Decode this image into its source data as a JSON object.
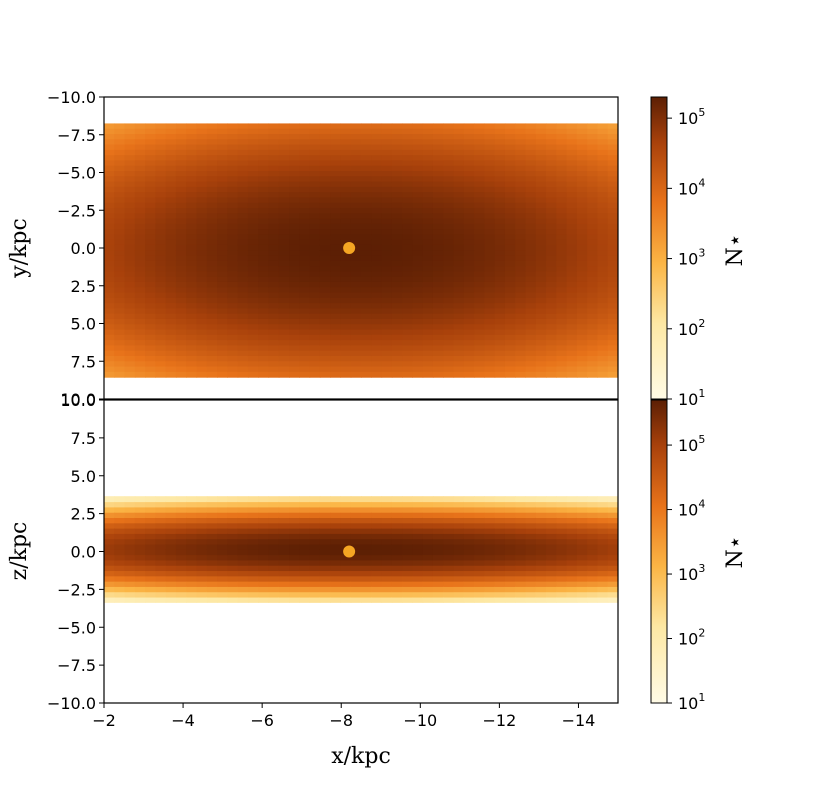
{
  "chart_data": [
    {
      "type": "heatmap",
      "panel": "top",
      "xlabel": "",
      "ylabel": "y/kpc",
      "xlim": [
        -2,
        -15
      ],
      "ylim": [
        -10,
        10
      ],
      "y_inverted": true,
      "yticks": [
        "−10.0",
        "−7.5",
        "−5.0",
        "−2.5",
        "0.0",
        "2.5",
        "5.0",
        "7.5",
        "10.0"
      ],
      "ytick_values": [
        -10,
        -7.5,
        -5,
        -2.5,
        0,
        2.5,
        5,
        7.5,
        10
      ],
      "marker": {
        "x": -8.2,
        "y": 0.0,
        "color": "#f5a623"
      },
      "density": {
        "center_x": -8.2,
        "center_y": 0.0,
        "sigma_x": 3.2,
        "sigma_y": 3.0,
        "extent_y": 8.5
      },
      "colorbar": {
        "label": "N⋆",
        "scale": "log",
        "range": [
          10,
          200000
        ],
        "ticks": [
          {
            "base": "10",
            "exp": "5",
            "v": 100000
          },
          {
            "base": "10",
            "exp": "4",
            "v": 10000
          },
          {
            "base": "10",
            "exp": "3",
            "v": 1000
          },
          {
            "base": "10",
            "exp": "2",
            "v": 100
          },
          {
            "base": "10",
            "exp": "1",
            "v": 10
          }
        ]
      }
    },
    {
      "type": "heatmap",
      "panel": "bottom",
      "xlabel": "x/kpc",
      "ylabel": "z/kpc",
      "xlim": [
        -2,
        -15
      ],
      "ylim": [
        -10,
        10
      ],
      "xticks": [
        "−2",
        "−4",
        "−6",
        "−8",
        "−10",
        "−12",
        "−14"
      ],
      "xtick_values": [
        -2,
        -4,
        -6,
        -8,
        -10,
        -12,
        -14
      ],
      "yticks": [
        "10.0",
        "7.5",
        "5.0",
        "2.5",
        "0.0",
        "−2.5",
        "−5.0",
        "−7.5",
        "−10.0"
      ],
      "ytick_values": [
        10,
        7.5,
        5,
        2.5,
        0,
        -2.5,
        -5,
        -7.5,
        -10
      ],
      "marker": {
        "x": -8.2,
        "y": 0.0,
        "color": "#f5a623"
      },
      "density": {
        "center_x": -8.2,
        "center_y": 0.0,
        "sigma_x": 3.6,
        "sigma_y": 0.8,
        "extent_y": 3.5
      },
      "colorbar": {
        "label": "N⋆",
        "scale": "log",
        "range": [
          10,
          500000
        ],
        "ticks": [
          {
            "base": "10",
            "exp": "5",
            "v": 100000
          },
          {
            "base": "10",
            "exp": "4",
            "v": 10000
          },
          {
            "base": "10",
            "exp": "3",
            "v": 1000
          },
          {
            "base": "10",
            "exp": "2",
            "v": 100
          },
          {
            "base": "10",
            "exp": "1",
            "v": 10
          }
        ]
      }
    }
  ]
}
